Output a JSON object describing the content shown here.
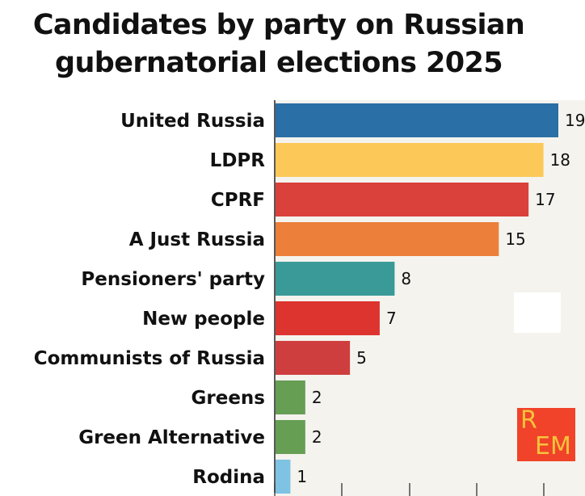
{
  "chart_data": {
    "type": "bar",
    "orientation": "horizontal",
    "title_lines": [
      "Candidates by party on Russian",
      "gubernatorial elections 2025"
    ],
    "categories": [
      "United Russia",
      "LDPR",
      "CPRF",
      "A Just Russia",
      "Pensioners' party",
      "New people",
      "Communists of Russia",
      "Greens",
      "Green Alternative",
      "Rodina"
    ],
    "values": [
      19,
      18,
      17,
      15,
      8,
      7,
      5,
      2,
      2,
      1
    ],
    "colors": [
      "#2a6fa6",
      "#fcc857",
      "#d9413a",
      "#ec7f3a",
      "#3a9a98",
      "#de3430",
      "#cf3e3f",
      "#669e54",
      "#669e54",
      "#7ec3e3"
    ],
    "xlim": [
      0,
      19
    ],
    "xlabel": "",
    "ylabel": "",
    "grid": false,
    "legend": "none"
  },
  "logo": {
    "line1": "R",
    "line2": "EM"
  }
}
